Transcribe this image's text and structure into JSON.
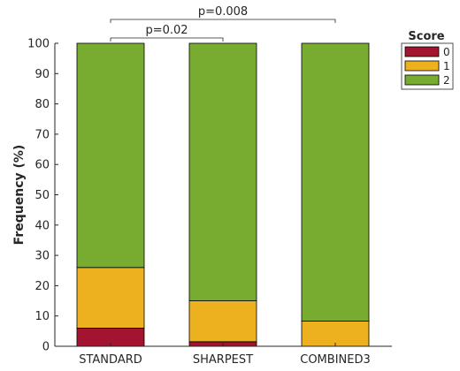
{
  "chart_data": {
    "type": "bar",
    "stacked": true,
    "categories": [
      "STANDARD",
      "SHARPEST",
      "COMBINED3"
    ],
    "series": [
      {
        "name": "0",
        "color": "#a2142f",
        "values": [
          6,
          1.5,
          0
        ]
      },
      {
        "name": "1",
        "color": "#edb120",
        "values": [
          20,
          13.5,
          8.3
        ]
      },
      {
        "name": "2",
        "color": "#77ac30",
        "values": [
          74,
          85,
          91.7
        ]
      }
    ],
    "title": "",
    "xlabel": "",
    "ylabel": "Frequency (%)",
    "ylim": [
      0,
      100
    ],
    "yticks": [
      "0",
      "10",
      "20",
      "30",
      "40",
      "50",
      "60",
      "70",
      "80",
      "90",
      "100"
    ],
    "legend": {
      "title": "Score",
      "placement": "outside-top-right"
    },
    "grid": false,
    "annotations": [
      {
        "label": "p=0.02",
        "from": 0,
        "to": 1
      },
      {
        "label": "p=0.008",
        "from": 0,
        "to": 2
      }
    ]
  }
}
